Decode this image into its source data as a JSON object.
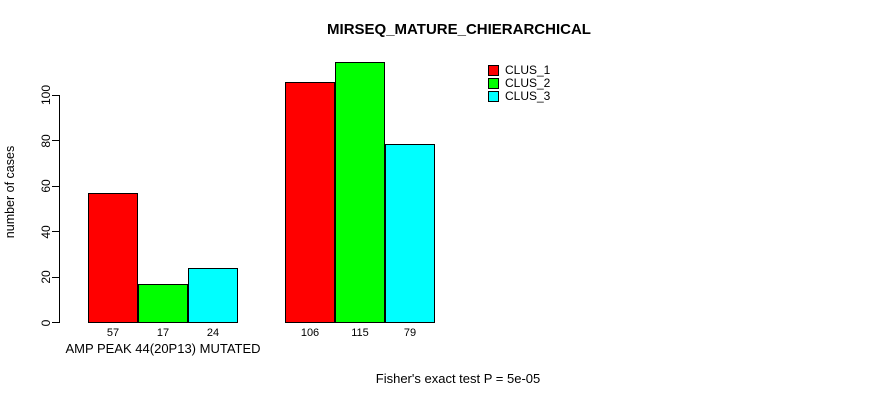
{
  "chart_data": {
    "type": "bar",
    "title": "MIRSEQ_MATURE_CHIERARCHICAL",
    "ylabel": "number of cases",
    "xlabel": "",
    "footnote": "Fisher's exact test P = 5e-05",
    "categories": [
      "AMP PEAK 44(20P13) MUTATED",
      ""
    ],
    "series": [
      {
        "name": "CLUS_1",
        "color": "#ff0000",
        "values": [
          57,
          106
        ]
      },
      {
        "name": "CLUS_2",
        "color": "#00ff00",
        "values": [
          17,
          115
        ]
      },
      {
        "name": "CLUS_3",
        "color": "#00ffff",
        "values": [
          24,
          79
        ]
      }
    ],
    "yticks": [
      0,
      20,
      40,
      60,
      80,
      100
    ],
    "ylim": [
      0,
      100
    ],
    "bar_values_shown": true,
    "legend_position": "top-right",
    "grid": false,
    "background": "#ffffff",
    "axis_color": "#000000"
  }
}
